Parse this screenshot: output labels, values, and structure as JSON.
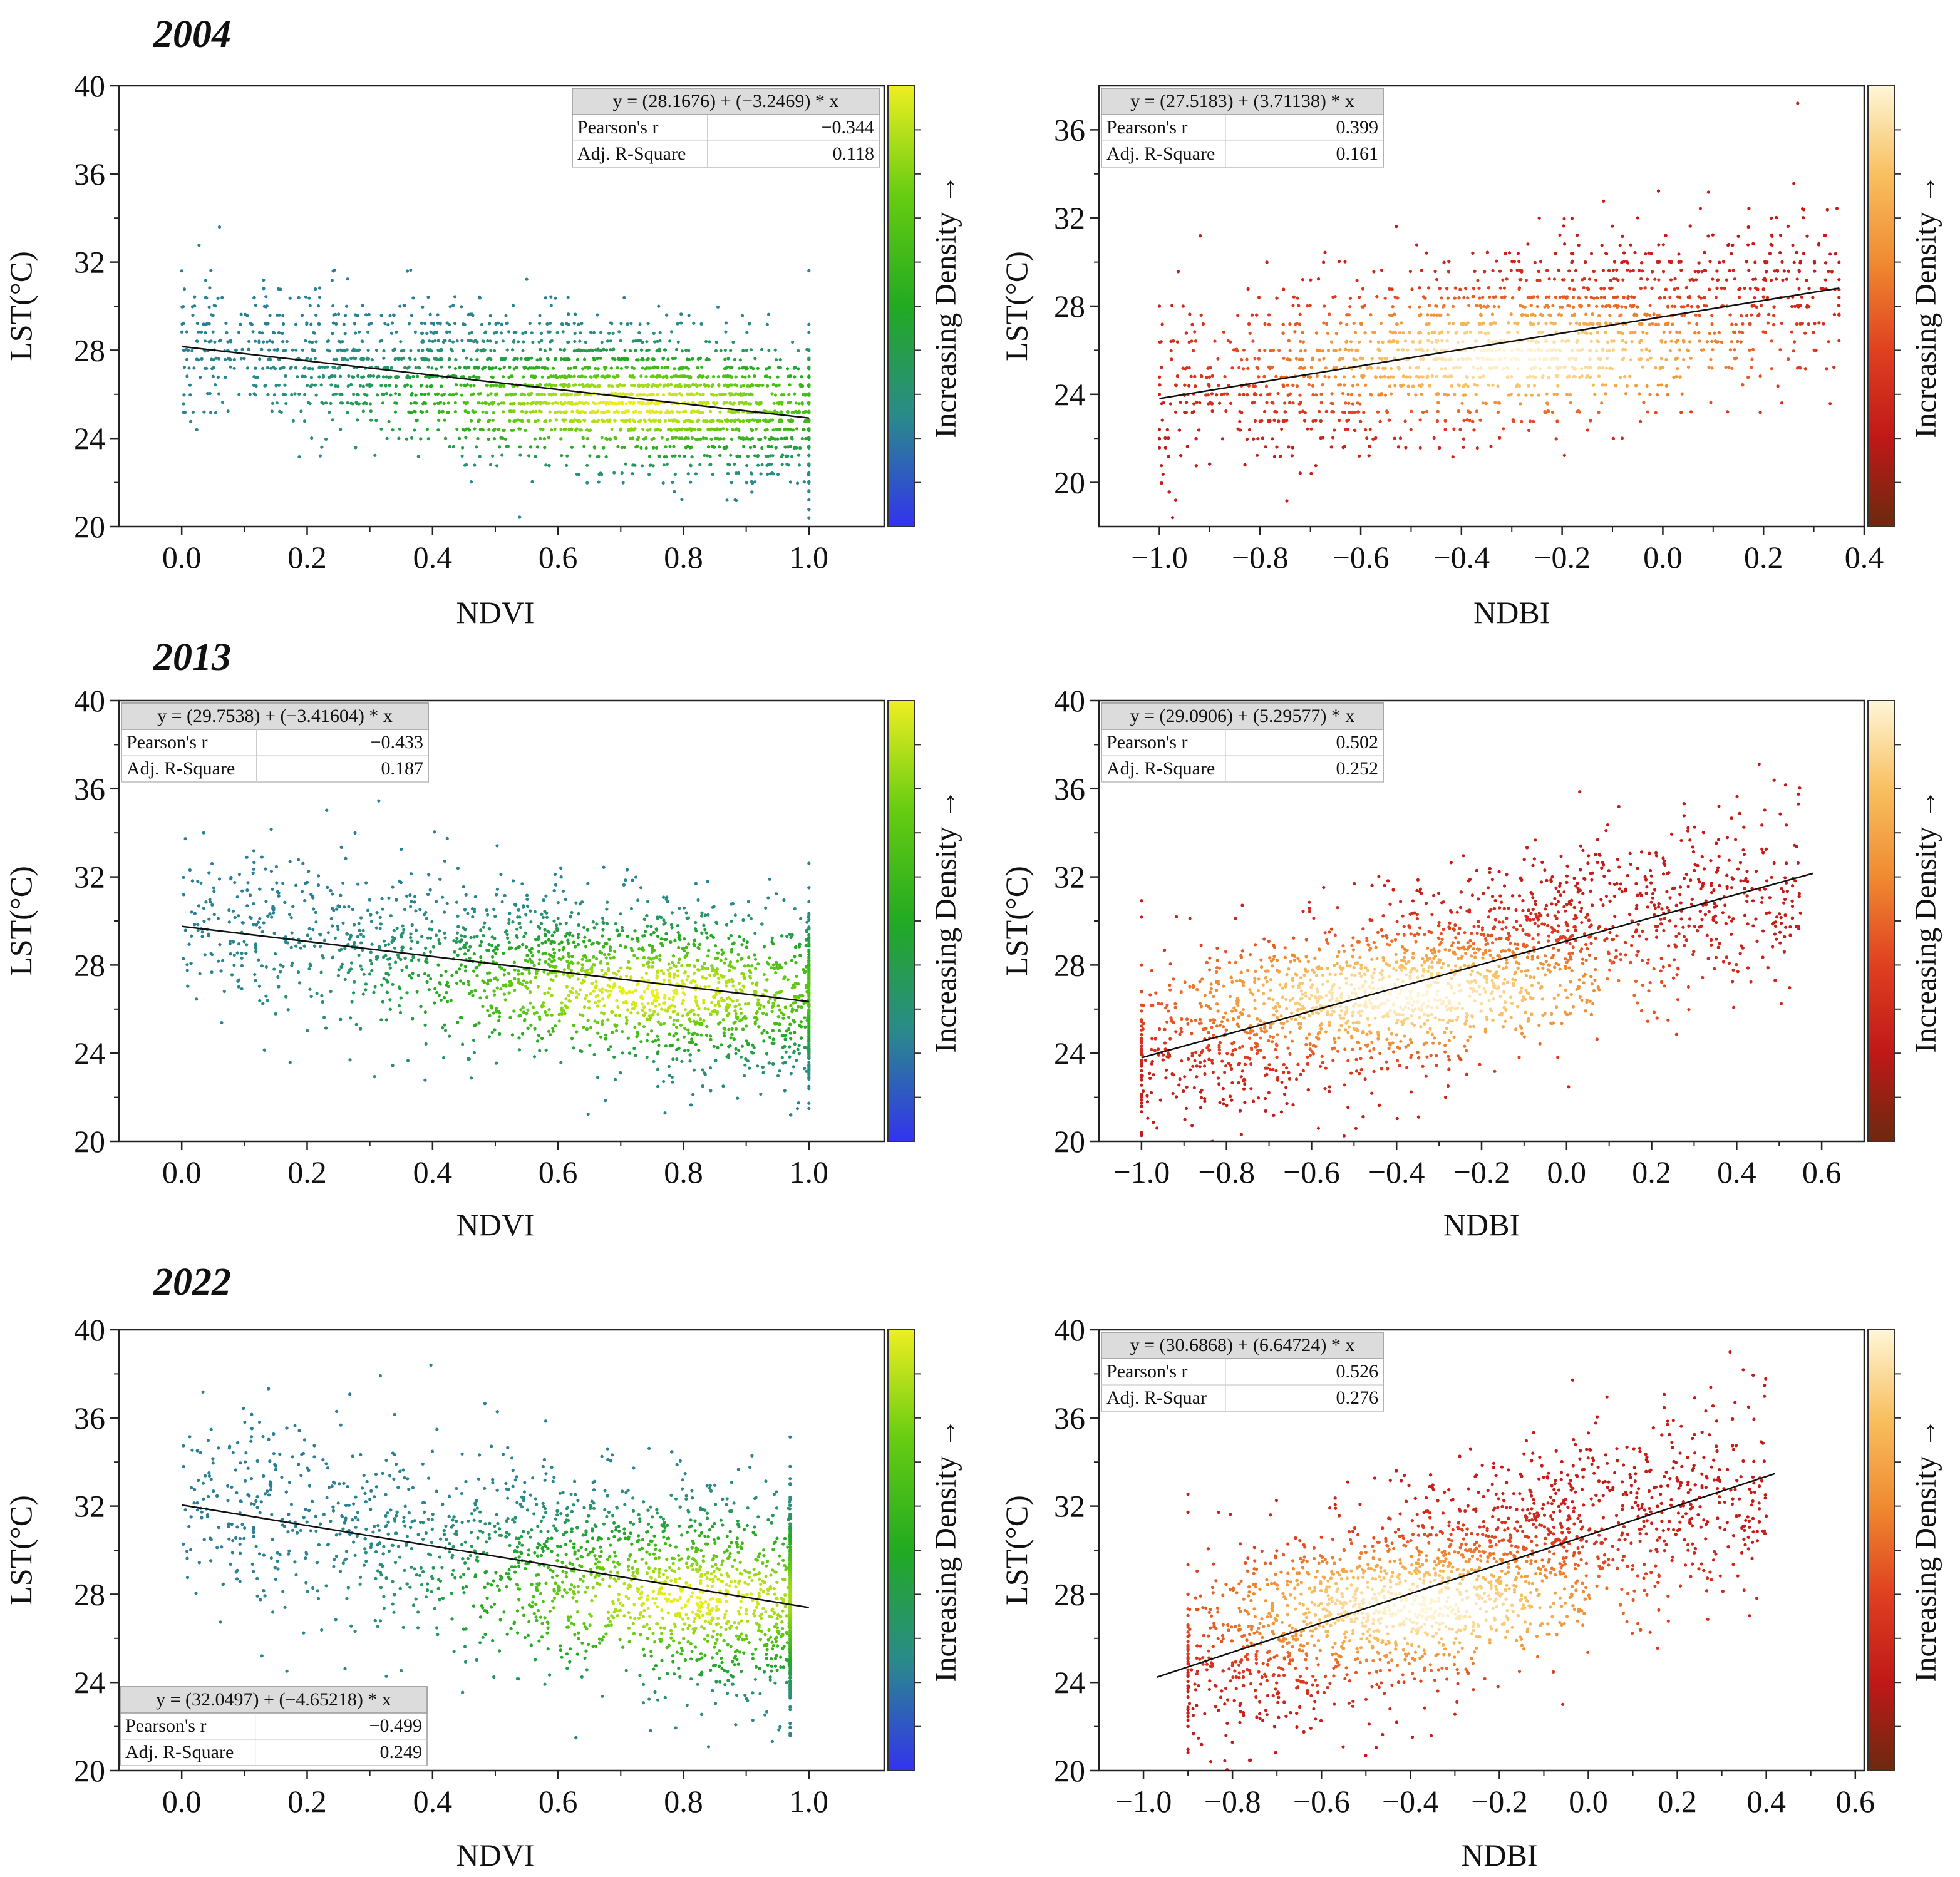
{
  "figure": {
    "colorbar_label": "Increasing Density →"
  },
  "chart_data": [
    {
      "type": "scatter",
      "year_label": "2004",
      "xlabel": "NDVI",
      "ylabel": "LST(°C)",
      "xlim": [
        -0.1,
        1.12
      ],
      "ylim": [
        20,
        40
      ],
      "xticks": [
        0.0,
        0.2,
        0.4,
        0.6,
        0.8,
        1.0
      ],
      "xtick_labels": [
        "0.0",
        "0.2",
        "0.4",
        "0.6",
        "0.8",
        "1.0"
      ],
      "yticks": [
        20,
        24,
        28,
        32,
        36,
        40
      ],
      "ytick_labels": [
        "20",
        "24",
        "28",
        "32",
        "36",
        "40"
      ],
      "colormap": [
        "#3333ee",
        "#2a8a8a",
        "#22aa22",
        "#66cc11",
        "#eeee22"
      ],
      "fit": {
        "intercept": 28.1676,
        "slope": -3.2469,
        "x_range": [
          0.0,
          1.0
        ]
      },
      "stats_box": {
        "equation": "y = (28.1676) + (−3.2469) * x",
        "rows": [
          {
            "label": "Pearson's r",
            "value": "−0.344"
          },
          {
            "label": "Adj. R-Square",
            "value": "0.118"
          }
        ],
        "position": "top-right"
      },
      "cloud": {
        "x_range": [
          0.0,
          1.0
        ],
        "center": [
          0.55,
          26.1
        ],
        "spread_y": 1.6,
        "density_peak": [
          0.72,
          25.5
        ],
        "banded": true
      }
    },
    {
      "type": "scatter",
      "xlabel": "NDBI",
      "ylabel": "LST(°C)",
      "xlim": [
        -1.12,
        0.4
      ],
      "ylim": [
        18,
        38
      ],
      "xticks": [
        -1.0,
        -0.8,
        -0.6,
        -0.4,
        -0.2,
        0.0,
        0.2,
        0.4
      ],
      "xtick_labels": [
        "−1.0",
        "−0.8",
        "−0.6",
        "−0.4",
        "−0.2",
        "0.0",
        "0.2",
        "0.4"
      ],
      "yticks": [
        20,
        24,
        28,
        32,
        36
      ],
      "ytick_labels": [
        "20",
        "24",
        "28",
        "32",
        "36"
      ],
      "colormap": [
        "#6b2a0e",
        "#c01818",
        "#e04020",
        "#f08a30",
        "#f8c060",
        "#fff6d8"
      ],
      "fit": {
        "intercept": 27.5183,
        "slope": 3.71138,
        "x_range": [
          -1.0,
          0.35
        ]
      },
      "stats_box": {
        "equation": "y = (27.5183) + (3.71138) * x",
        "rows": [
          {
            "label": "Pearson's r",
            "value": "0.399"
          },
          {
            "label": "Adj. R-Square",
            "value": "0.161"
          }
        ],
        "position": "top-left"
      },
      "cloud": {
        "x_range": [
          -1.0,
          0.35
        ],
        "center": [
          -0.2,
          26.6
        ],
        "spread_y": 2.0,
        "density_peak": [
          -0.3,
          25.7
        ],
        "banded": true
      }
    },
    {
      "type": "scatter",
      "year_label": "2013",
      "xlabel": "NDVI",
      "ylabel": "LST(°C)",
      "xlim": [
        -0.1,
        1.12
      ],
      "ylim": [
        20,
        40
      ],
      "xticks": [
        0.0,
        0.2,
        0.4,
        0.6,
        0.8,
        1.0
      ],
      "xtick_labels": [
        "0.0",
        "0.2",
        "0.4",
        "0.6",
        "0.8",
        "1.0"
      ],
      "yticks": [
        20,
        24,
        28,
        32,
        36,
        40
      ],
      "ytick_labels": [
        "20",
        "24",
        "28",
        "32",
        "36",
        "40"
      ],
      "colormap": [
        "#3333ee",
        "#2a8a8a",
        "#22aa22",
        "#66cc11",
        "#eeee22"
      ],
      "fit": {
        "intercept": 29.7538,
        "slope": -3.41604,
        "x_range": [
          0.0,
          1.0
        ]
      },
      "stats_box": {
        "equation": "y = (29.7538) + (−3.41604) * x",
        "rows": [
          {
            "label": "Pearson's r",
            "value": "−0.433"
          },
          {
            "label": "Adj. R-Square",
            "value": "0.187"
          }
        ],
        "position": "top-left"
      },
      "cloud": {
        "x_range": [
          0.0,
          1.0
        ],
        "center": [
          0.6,
          27.6
        ],
        "spread_y": 1.9,
        "density_peak": [
          0.75,
          26.8
        ],
        "banded": false
      }
    },
    {
      "type": "scatter",
      "xlabel": "NDBI",
      "ylabel": "LST(°C)",
      "xlim": [
        -1.1,
        0.7
      ],
      "ylim": [
        20,
        40
      ],
      "xticks": [
        -1.0,
        -0.8,
        -0.6,
        -0.4,
        -0.2,
        0.0,
        0.2,
        0.4,
        0.6
      ],
      "xtick_labels": [
        "−1.0",
        "−0.8",
        "−0.6",
        "−0.4",
        "−0.2",
        "0.0",
        "0.2",
        "0.4",
        "0.6"
      ],
      "yticks": [
        20,
        24,
        28,
        32,
        36,
        40
      ],
      "ytick_labels": [
        "20",
        "24",
        "28",
        "32",
        "36",
        "40"
      ],
      "colormap": [
        "#6b2a0e",
        "#c01818",
        "#e04020",
        "#f08a30",
        "#f8c060",
        "#fff6d8"
      ],
      "fit": {
        "intercept": 29.0906,
        "slope": 5.29577,
        "x_range": [
          -1.0,
          0.58
        ]
      },
      "stats_box": {
        "equation": "y = (29.0906) + (5.29577) * x",
        "rows": [
          {
            "label": "Pearson's r",
            "value": "0.502"
          },
          {
            "label": "Adj. R-Square",
            "value": "0.252"
          }
        ],
        "position": "top-left"
      },
      "cloud": {
        "x_range": [
          -1.0,
          0.55
        ],
        "center": [
          -0.3,
          27.4
        ],
        "spread_y": 2.0,
        "density_peak": [
          -0.38,
          26.6
        ],
        "banded": false
      }
    },
    {
      "type": "scatter",
      "year_label": "2022",
      "xlabel": "NDVI",
      "ylabel": "LST(°C)",
      "xlim": [
        -0.1,
        1.12
      ],
      "ylim": [
        20,
        40
      ],
      "xticks": [
        0.0,
        0.2,
        0.4,
        0.6,
        0.8,
        1.0
      ],
      "xtick_labels": [
        "0.0",
        "0.2",
        "0.4",
        "0.6",
        "0.8",
        "1.0"
      ],
      "yticks": [
        20,
        24,
        28,
        32,
        36,
        40
      ],
      "ytick_labels": [
        "20",
        "24",
        "28",
        "32",
        "36",
        "40"
      ],
      "colormap": [
        "#3333ee",
        "#2a8a8a",
        "#22aa22",
        "#66cc11",
        "#eeee22"
      ],
      "fit": {
        "intercept": 32.0497,
        "slope": -4.65218,
        "x_range": [
          0.0,
          1.0
        ]
      },
      "stats_box": {
        "equation": "y = (32.0497) + (−4.65218) * x",
        "rows": [
          {
            "label": "Pearson's r",
            "value": "−0.499"
          },
          {
            "label": "Adj. R-Square",
            "value": "0.249"
          }
        ],
        "position": "bottom-left"
      },
      "cloud": {
        "x_range": [
          0.0,
          0.97
        ],
        "center": [
          0.6,
          29.4
        ],
        "spread_y": 2.3,
        "density_peak": [
          0.82,
          27.8
        ],
        "banded": false
      }
    },
    {
      "type": "scatter",
      "xlabel": "NDBI",
      "ylabel": "LST(°C)",
      "xlim": [
        -1.1,
        0.62
      ],
      "ylim": [
        20,
        40
      ],
      "xticks": [
        -1.0,
        -0.8,
        -0.6,
        -0.4,
        -0.2,
        0.0,
        0.2,
        0.4,
        0.6
      ],
      "xtick_labels": [
        "−1.0",
        "−0.8",
        "−0.6",
        "−0.4",
        "−0.2",
        "0.0",
        "0.2",
        "0.4",
        "0.6"
      ],
      "yticks": [
        20,
        24,
        28,
        32,
        36,
        40
      ],
      "ytick_labels": [
        "20",
        "24",
        "28",
        "32",
        "36",
        "40"
      ],
      "colormap": [
        "#6b2a0e",
        "#c01818",
        "#e04020",
        "#f08a30",
        "#f8c060",
        "#fff6d8"
      ],
      "fit": {
        "intercept": 30.6868,
        "slope": 6.64724,
        "x_range": [
          -0.97,
          0.42
        ]
      },
      "stats_box": {
        "equation": "y = (30.6868) + (6.64724) * x",
        "rows": [
          {
            "label": "Pearson's r",
            "value": "0.526"
          },
          {
            "label": "Adj. R-Squar",
            "value": "0.276"
          }
        ],
        "position": "top-left"
      },
      "cloud": {
        "x_range": [
          -0.9,
          0.4
        ],
        "center": [
          -0.25,
          29.2
        ],
        "spread_y": 2.2,
        "density_peak": [
          -0.38,
          27.4
        ],
        "banded": false
      }
    }
  ]
}
